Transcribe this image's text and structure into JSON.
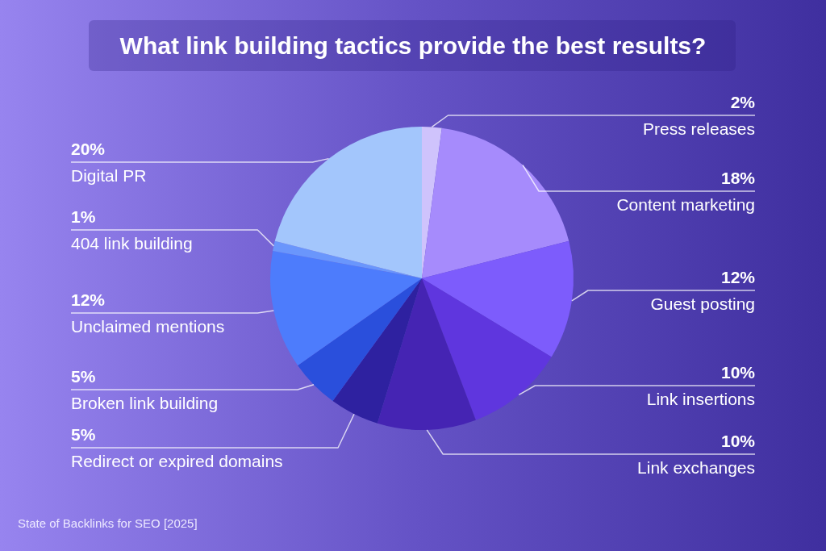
{
  "chart_data": {
    "type": "pie",
    "title": "What link building tactics provide the best results?",
    "categories": [
      "Press releases",
      "Content marketing",
      "Guest posting",
      "Link insertions",
      "Link exchanges",
      "Redirect or expired domains",
      "Broken link building",
      "Unclaimed mentions",
      "404 link building",
      "Digital PR"
    ],
    "values": [
      2,
      18,
      12,
      10,
      10,
      5,
      5,
      12,
      1,
      20
    ],
    "value_labels": [
      "2%",
      "18%",
      "12%",
      "10%",
      "10%",
      "5%",
      "5%",
      "12%",
      "1%",
      "20%"
    ],
    "colors": [
      "#cfc3fc",
      "#a68bfc",
      "#7d5cfc",
      "#5f36de",
      "#4524b3",
      "#2e21a0",
      "#2a4fdc",
      "#4d7cfc",
      "#6a96fc",
      "#a3c6fc"
    ],
    "annotations": [
      "State of Backlinks for SEO [2025]"
    ]
  }
}
